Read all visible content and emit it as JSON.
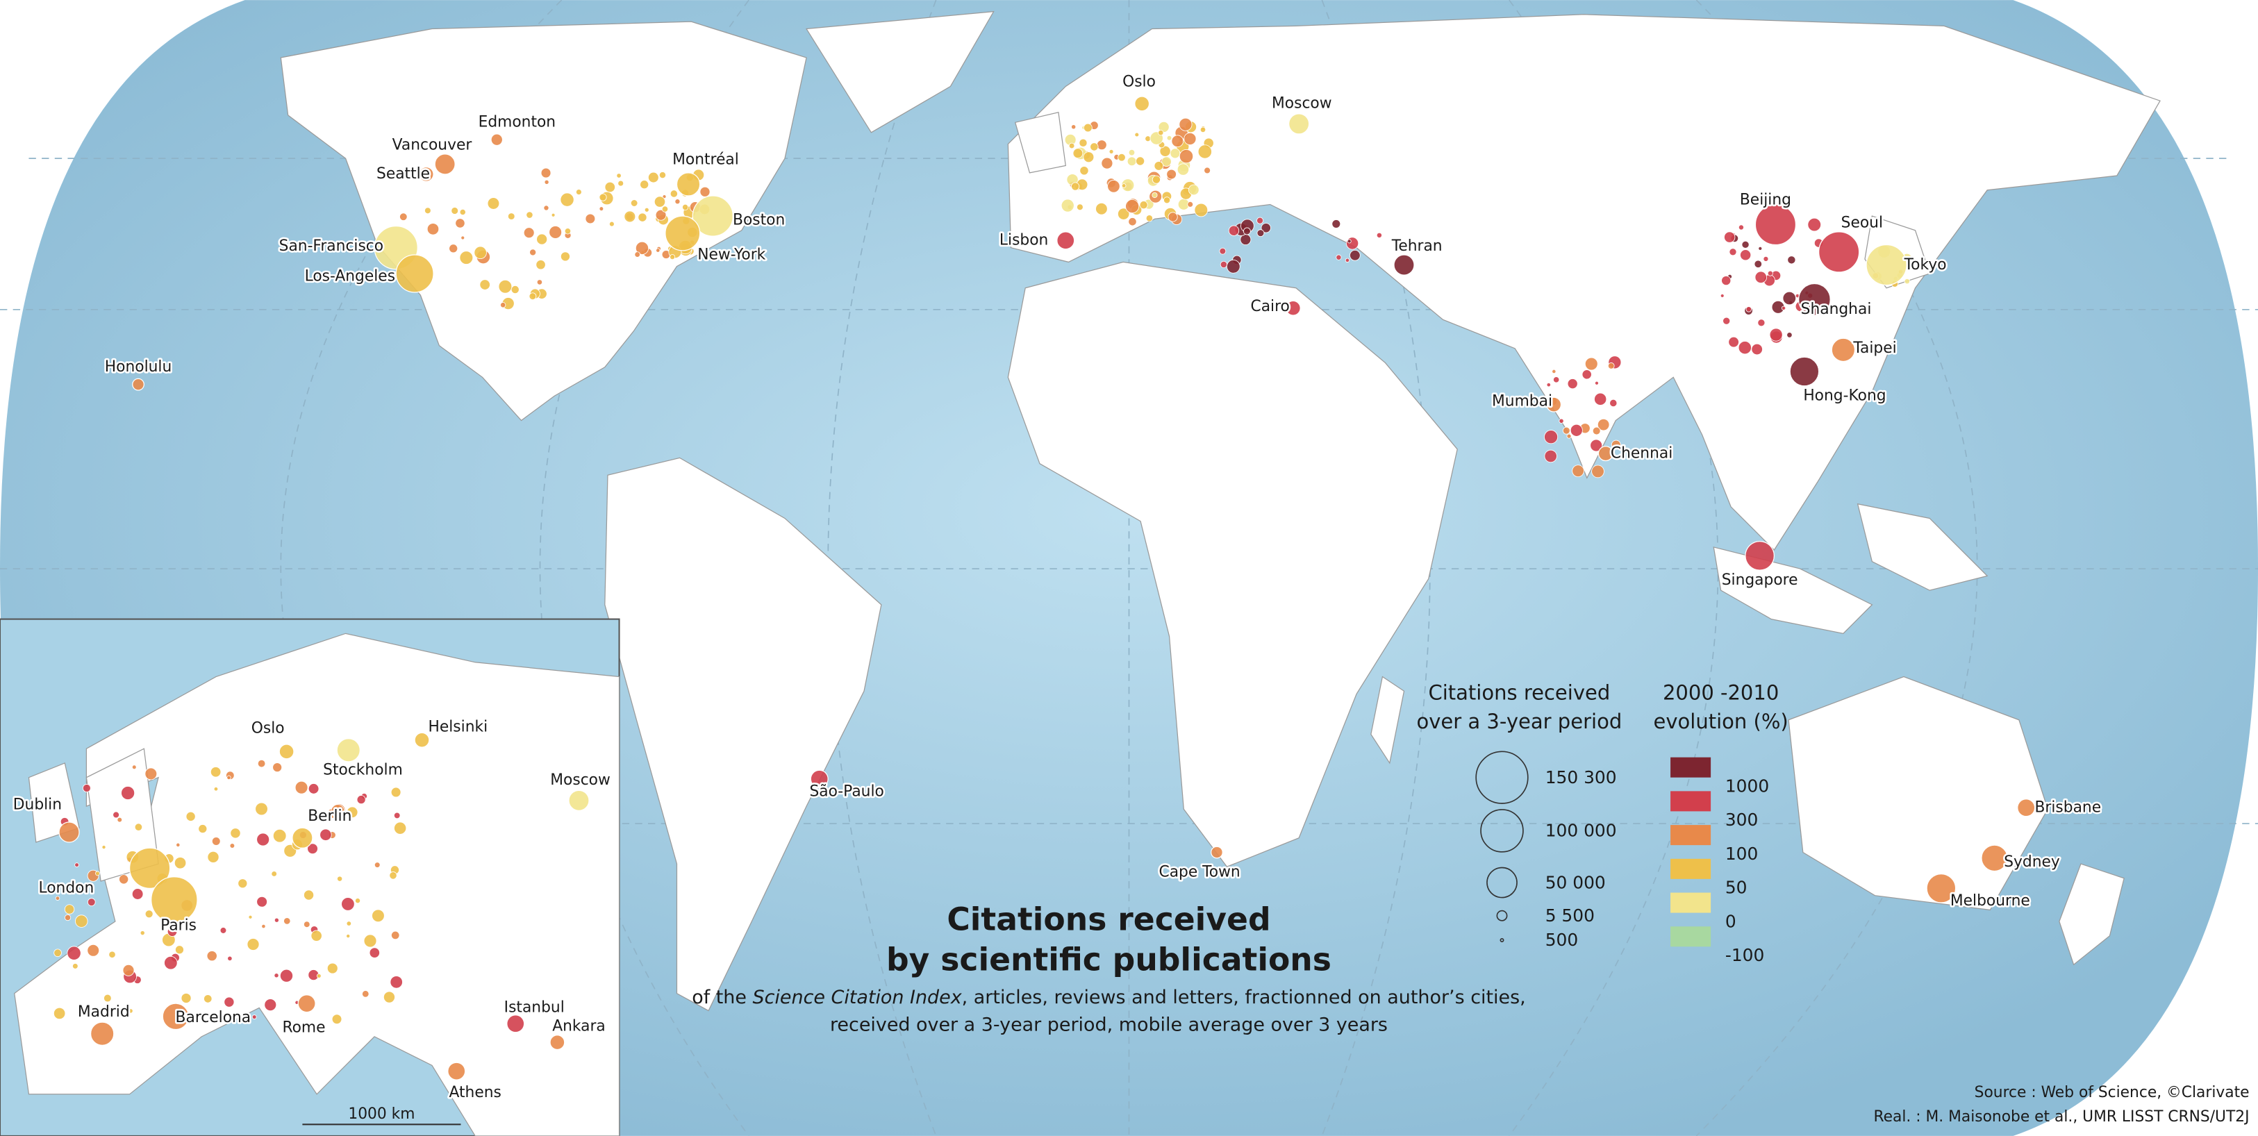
{
  "title": [
    "Citations received",
    "by scientific publications"
  ],
  "subtitle": {
    "line1": [
      "of the ",
      "Science Citation Index",
      ", articles, reviews and letters, fractionned on author’s cities,"
    ],
    "line2": "received over a 3-year period, mobile average over 3 years"
  },
  "size_legend": {
    "title": [
      "Citations received",
      "over a 3-year period"
    ],
    "items": [
      {
        "value": 150300,
        "label": "150 300"
      },
      {
        "value": 100000,
        "label": "100 000"
      },
      {
        "value": 50000,
        "label": "50 000"
      },
      {
        "value": 5500,
        "label": "5 500"
      },
      {
        "value": 500,
        "label": "500"
      }
    ]
  },
  "color_legend": {
    "title": [
      "2000 -2010",
      "evolution (%)"
    ],
    "items": [
      {
        "label": "1000",
        "color": "#7d2530"
      },
      {
        "label": "300",
        "color": "#d23f4c"
      },
      {
        "label": "100",
        "color": "#e8894a"
      },
      {
        "label": "50",
        "color": "#eec04a"
      },
      {
        "label": "0",
        "color": "#f2e48c"
      },
      {
        "label": "-100",
        "color": "#a8d8a0"
      }
    ]
  },
  "world_cities": [
    "Edmonton",
    "Vancouver",
    "Seattle",
    "Montréal",
    "San-Francisco",
    "Los-Angeles",
    "Boston",
    "New-York",
    "Honolulu",
    "Oslo",
    "Moscow",
    "Lisbon",
    "Tehran",
    "Cairo",
    "Beijing",
    "Seoul",
    "Tokyo",
    "Shanghai",
    "Taipei",
    "Hong-Kong",
    "Mumbai",
    "Chennai",
    "Singapore",
    "São-Paulo",
    "Cape Town",
    "Brisbane",
    "Sydney",
    "Melbourne"
  ],
  "europe_inset": {
    "cities": [
      "Oslo",
      "Helsinki",
      "Stockholm",
      "Moscow",
      "Dublin",
      "Berlin",
      "London",
      "Paris",
      "Madrid",
      "Barcelona",
      "Rome",
      "Istanbul",
      "Ankara",
      "Athens"
    ],
    "scale": "1000 km"
  },
  "source": [
    "Source : Web of Science, ©Clarivate",
    "Real. : M. Maisonobe et al., UMR LISST CRNS/UT2J"
  ]
}
